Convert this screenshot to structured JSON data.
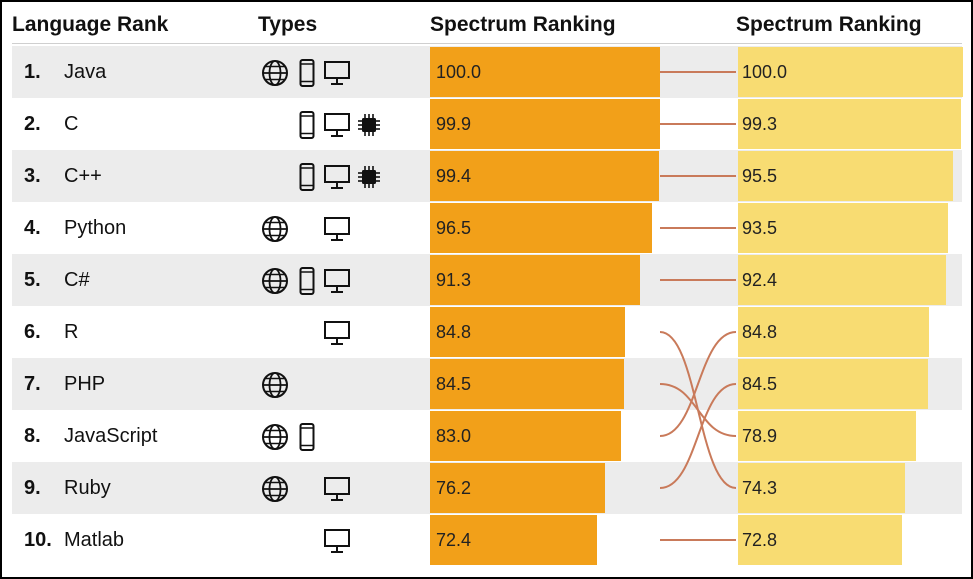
{
  "chart_data": {
    "type": "table",
    "headers": {
      "rank": "Language Rank",
      "types": "Types",
      "spectrum_left": "Spectrum Ranking",
      "spectrum_right": "Spectrum Ranking"
    },
    "rows": [
      {
        "rank": "1.",
        "name": "Java",
        "types": [
          "web",
          "mobile",
          "desktop"
        ],
        "left": 100.0,
        "left_label": "100.0",
        "right_rank": 1
      },
      {
        "rank": "2.",
        "name": "C",
        "types": [
          "mobile",
          "desktop",
          "embedded"
        ],
        "left": 99.9,
        "left_label": "99.9",
        "right_rank": 2
      },
      {
        "rank": "3.",
        "name": "C++",
        "types": [
          "mobile",
          "desktop",
          "embedded"
        ],
        "left": 99.4,
        "left_label": "99.4",
        "right_rank": 3
      },
      {
        "rank": "4.",
        "name": "Python",
        "types": [
          "web",
          "desktop"
        ],
        "left": 96.5,
        "left_label": "96.5",
        "right_rank": 4
      },
      {
        "rank": "5.",
        "name": "C#",
        "types": [
          "web",
          "mobile",
          "desktop"
        ],
        "left": 91.3,
        "left_label": "91.3",
        "right_rank": 5
      },
      {
        "rank": "6.",
        "name": "R",
        "types": [
          "desktop"
        ],
        "left": 84.8,
        "left_label": "84.8",
        "right_rank": 9
      },
      {
        "rank": "7.",
        "name": "PHP",
        "types": [
          "web"
        ],
        "left": 84.5,
        "left_label": "84.5",
        "right_rank": 8
      },
      {
        "rank": "8.",
        "name": "JavaScript",
        "types": [
          "web",
          "mobile"
        ],
        "left": 83.0,
        "left_label": "83.0",
        "right_rank": 6
      },
      {
        "rank": "9.",
        "name": "Ruby",
        "types": [
          "web",
          "desktop"
        ],
        "left": 76.2,
        "left_label": "76.2",
        "right_rank": 7
      },
      {
        "rank": "10.",
        "name": "Matlab",
        "types": [
          "desktop"
        ],
        "left": 72.4,
        "left_label": "72.4",
        "right_rank": 10
      }
    ],
    "right_values": [
      {
        "value": 100.0,
        "label": "100.0"
      },
      {
        "value": 99.3,
        "label": "99.3"
      },
      {
        "value": 95.5,
        "label": "95.5"
      },
      {
        "value": 93.5,
        "label": "93.5"
      },
      {
        "value": 92.4,
        "label": "92.4"
      },
      {
        "value": 84.8,
        "label": "84.8"
      },
      {
        "value": 84.5,
        "label": "84.5"
      },
      {
        "value": 78.9,
        "label": "78.9"
      },
      {
        "value": 74.3,
        "label": "74.3"
      },
      {
        "value": 72.8,
        "label": "72.8"
      }
    ],
    "colors": {
      "left_bar": "#f2a019",
      "right_bar": "#f8dc72",
      "connector": "#c97a5a",
      "row_shade": "#ececec"
    },
    "icons": {
      "web": "globe-icon",
      "mobile": "phone-icon",
      "desktop": "monitor-icon",
      "embedded": "chip-icon"
    }
  }
}
